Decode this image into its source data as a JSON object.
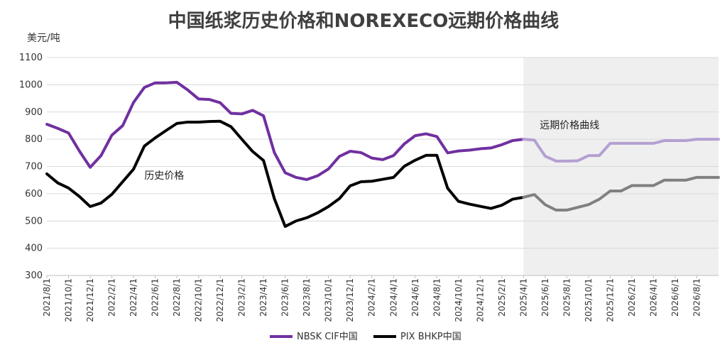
{
  "chart_data": {
    "type": "line",
    "title": "中国纸浆历史价格和NOREXECO远期价格曲线",
    "unit_label": "美元/吨",
    "ylim": [
      300,
      1100
    ],
    "yticks": [
      300,
      400,
      500,
      600,
      700,
      800,
      900,
      1000,
      1100
    ],
    "grid": "horizontal",
    "x_start": "2021/8",
    "xticks": [
      "2021/8/1",
      "2021/10/1",
      "2021/12/1",
      "2022/2/1",
      "2022/4/1",
      "2022/6/1",
      "2022/8/1",
      "2022/10/1",
      "2022/12/1",
      "2023/2/1",
      "2023/4/1",
      "2023/6/1",
      "2023/8/1",
      "2023/10/1",
      "2023/12/1",
      "2024/2/1",
      "2024/4/1",
      "2024/6/1",
      "2024/8/1",
      "2024/10/1",
      "2024/12/1",
      "2025/2/1",
      "2025/4/1",
      "2025/6/1",
      "2025/8/1",
      "2025/10/1",
      "2025/12/1",
      "2026/2/1",
      "2026/4/1",
      "2026/6/1",
      "2026/8/1"
    ],
    "history_label": "历史价格",
    "forward_label": "远期价格曲线",
    "forward_start": "2025/5",
    "legend_position": "bottom",
    "colors": {
      "nbsk_hist": "#7030A0",
      "nbsk_fwd": "#B4A0D2",
      "pix_hist": "#000000",
      "pix_fwd": "#808080",
      "shade": "#EFEFEF",
      "grid": "#D9D9D9"
    },
    "series": [
      {
        "name": "NBSK CIF中国",
        "values": [
          855,
          840,
          823,
          757,
          697,
          740,
          815,
          850,
          935,
          990,
          1007,
          1007,
          1009,
          981,
          948,
          946,
          934,
          895,
          893,
          906,
          886,
          751,
          677,
          660,
          652,
          666,
          691,
          737,
          756,
          751,
          731,
          725,
          740,
          783,
          813,
          820,
          810,
          750,
          757,
          760,
          765,
          768,
          780,
          795,
          800,
          797,
          738,
          720,
          720,
          721,
          740,
          740,
          785,
          785,
          785,
          785,
          785,
          795,
          795,
          795,
          800,
          800,
          800
        ]
      },
      {
        "name": "PIX BHKP中国",
        "values": [
          673,
          640,
          621,
          590,
          553,
          566,
          598,
          644,
          690,
          775,
          805,
          832,
          858,
          863,
          863,
          865,
          866,
          846,
          800,
          755,
          722,
          582,
          480,
          500,
          512,
          530,
          553,
          582,
          629,
          644,
          646,
          653,
          660,
          701,
          723,
          741,
          741,
          620,
          572,
          562,
          554,
          546,
          558,
          580,
          587,
          597,
          560,
          540,
          540,
          550,
          560,
          580,
          610,
          610,
          630,
          630,
          630,
          650,
          650,
          650,
          660,
          660,
          660
        ]
      }
    ]
  }
}
